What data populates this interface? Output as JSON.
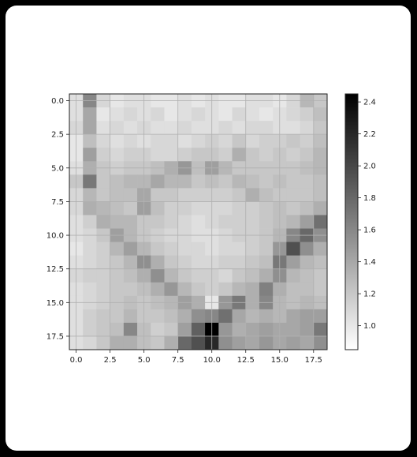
{
  "chart_data": {
    "type": "heatmap",
    "title": "",
    "xlabel": "",
    "ylabel": "",
    "colormap": "gray_r",
    "vmin": 0.85,
    "vmax": 2.45,
    "grid": true,
    "rows": 19,
    "cols": 19,
    "xlim": [
      -0.5,
      18.5
    ],
    "ylim": [
      18.5,
      -0.5
    ],
    "xticks": [
      {
        "value": 0.0,
        "label": "0.0"
      },
      {
        "value": 2.5,
        "label": "2.5"
      },
      {
        "value": 5.0,
        "label": "5.0"
      },
      {
        "value": 7.5,
        "label": "7.5"
      },
      {
        "value": 10.0,
        "label": "10.0"
      },
      {
        "value": 12.5,
        "label": "12.5"
      },
      {
        "value": 15.0,
        "label": "15.0"
      },
      {
        "value": 17.5,
        "label": "17.5"
      }
    ],
    "yticks": [
      {
        "value": 0.0,
        "label": "0.0"
      },
      {
        "value": 2.5,
        "label": "2.5"
      },
      {
        "value": 5.0,
        "label": "5.0"
      },
      {
        "value": 7.5,
        "label": "7.5"
      },
      {
        "value": 10.0,
        "label": "10.0"
      },
      {
        "value": 12.5,
        "label": "12.5"
      },
      {
        "value": 15.0,
        "label": "15.0"
      },
      {
        "value": 17.5,
        "label": "17.5"
      }
    ],
    "colorbar": {
      "ticks": [
        {
          "value": 1.0,
          "label": "1.0"
        },
        {
          "value": 1.2,
          "label": "1.2"
        },
        {
          "value": 1.4,
          "label": "1.4"
        },
        {
          "value": 1.6,
          "label": "1.6"
        },
        {
          "value": 1.8,
          "label": "1.8"
        },
        {
          "value": 2.0,
          "label": "2.0"
        },
        {
          "value": 2.2,
          "label": "2.2"
        },
        {
          "value": 2.4,
          "label": "2.4"
        }
      ]
    },
    "values": [
      [
        1.05,
        1.6,
        1.1,
        1.0,
        1.05,
        1.05,
        1.0,
        1.0,
        1.05,
        1.0,
        1.05,
        1.0,
        1.0,
        1.05,
        1.05,
        1.0,
        1.1,
        1.3,
        1.2
      ],
      [
        1.05,
        1.4,
        1.0,
        1.05,
        1.1,
        1.05,
        1.1,
        1.0,
        1.05,
        1.1,
        1.05,
        1.0,
        1.1,
        1.05,
        1.0,
        1.05,
        1.1,
        1.15,
        1.25
      ],
      [
        1.1,
        1.4,
        1.05,
        1.1,
        1.05,
        1.1,
        1.05,
        1.05,
        1.1,
        1.05,
        1.05,
        1.1,
        1.05,
        1.1,
        1.1,
        1.05,
        1.05,
        1.1,
        1.2
      ],
      [
        1.0,
        1.25,
        1.1,
        1.05,
        1.1,
        1.05,
        1.1,
        1.1,
        1.05,
        1.1,
        1.15,
        1.1,
        1.2,
        1.1,
        1.15,
        1.15,
        1.2,
        1.15,
        1.25
      ],
      [
        1.0,
        1.45,
        1.15,
        1.1,
        1.15,
        1.15,
        1.1,
        1.1,
        1.15,
        1.2,
        1.2,
        1.15,
        1.35,
        1.2,
        1.15,
        1.2,
        1.15,
        1.2,
        1.3
      ],
      [
        1.05,
        1.35,
        1.2,
        1.15,
        1.2,
        1.2,
        1.25,
        1.35,
        1.5,
        1.25,
        1.45,
        1.3,
        1.2,
        1.2,
        1.2,
        1.2,
        1.2,
        1.25,
        1.3
      ],
      [
        1.2,
        1.7,
        1.2,
        1.25,
        1.3,
        1.3,
        1.4,
        1.3,
        1.3,
        1.2,
        1.25,
        1.2,
        1.3,
        1.25,
        1.2,
        1.25,
        1.2,
        1.2,
        1.25
      ],
      [
        1.1,
        1.3,
        1.2,
        1.25,
        1.25,
        1.4,
        1.2,
        1.2,
        1.15,
        1.15,
        1.15,
        1.15,
        1.2,
        1.35,
        1.25,
        1.2,
        1.2,
        1.2,
        1.25
      ],
      [
        1.1,
        1.35,
        1.3,
        1.25,
        1.2,
        1.45,
        1.25,
        1.15,
        1.15,
        1.1,
        1.1,
        1.1,
        1.15,
        1.15,
        1.2,
        1.25,
        1.2,
        1.25,
        1.35
      ],
      [
        1.05,
        1.15,
        1.35,
        1.3,
        1.3,
        1.2,
        1.2,
        1.15,
        1.1,
        1.05,
        1.1,
        1.15,
        1.15,
        1.15,
        1.2,
        1.25,
        1.3,
        1.45,
        1.75
      ],
      [
        1.05,
        1.1,
        1.2,
        1.45,
        1.3,
        1.2,
        1.15,
        1.1,
        1.1,
        1.05,
        1.05,
        1.1,
        1.15,
        1.15,
        1.2,
        1.3,
        1.6,
        1.8,
        1.55
      ],
      [
        1.0,
        1.1,
        1.15,
        1.3,
        1.45,
        1.3,
        1.2,
        1.15,
        1.1,
        1.1,
        1.05,
        1.1,
        1.1,
        1.15,
        1.2,
        1.5,
        1.95,
        1.55,
        1.35
      ],
      [
        1.05,
        1.1,
        1.15,
        1.2,
        1.3,
        1.55,
        1.35,
        1.2,
        1.15,
        1.1,
        1.1,
        1.15,
        1.15,
        1.2,
        1.25,
        1.7,
        1.45,
        1.3,
        1.25
      ],
      [
        1.1,
        1.15,
        1.15,
        1.2,
        1.25,
        1.35,
        1.55,
        1.3,
        1.2,
        1.15,
        1.15,
        1.1,
        1.2,
        1.25,
        1.35,
        1.55,
        1.3,
        1.25,
        1.2
      ],
      [
        1.05,
        1.1,
        1.15,
        1.2,
        1.2,
        1.25,
        1.35,
        1.5,
        1.3,
        1.2,
        1.15,
        1.2,
        1.3,
        1.35,
        1.65,
        1.35,
        1.25,
        1.25,
        1.2
      ],
      [
        1.05,
        1.1,
        1.15,
        1.2,
        1.25,
        1.2,
        1.25,
        1.3,
        1.45,
        1.35,
        1.0,
        1.5,
        1.7,
        1.35,
        1.6,
        1.3,
        1.25,
        1.3,
        1.25
      ],
      [
        1.05,
        1.15,
        1.2,
        1.2,
        1.3,
        1.2,
        1.2,
        1.25,
        1.35,
        1.55,
        1.6,
        1.75,
        1.4,
        1.3,
        1.35,
        1.3,
        1.4,
        1.45,
        1.45
      ],
      [
        1.05,
        1.15,
        1.2,
        1.25,
        1.6,
        1.25,
        1.15,
        1.2,
        1.45,
        1.85,
        2.45,
        1.5,
        1.35,
        1.4,
        1.45,
        1.4,
        1.4,
        1.45,
        1.7
      ],
      [
        1.05,
        1.1,
        1.2,
        1.35,
        1.35,
        1.25,
        1.2,
        1.35,
        1.8,
        1.95,
        2.2,
        1.55,
        1.45,
        1.4,
        1.5,
        1.4,
        1.45,
        1.4,
        1.55
      ]
    ]
  }
}
